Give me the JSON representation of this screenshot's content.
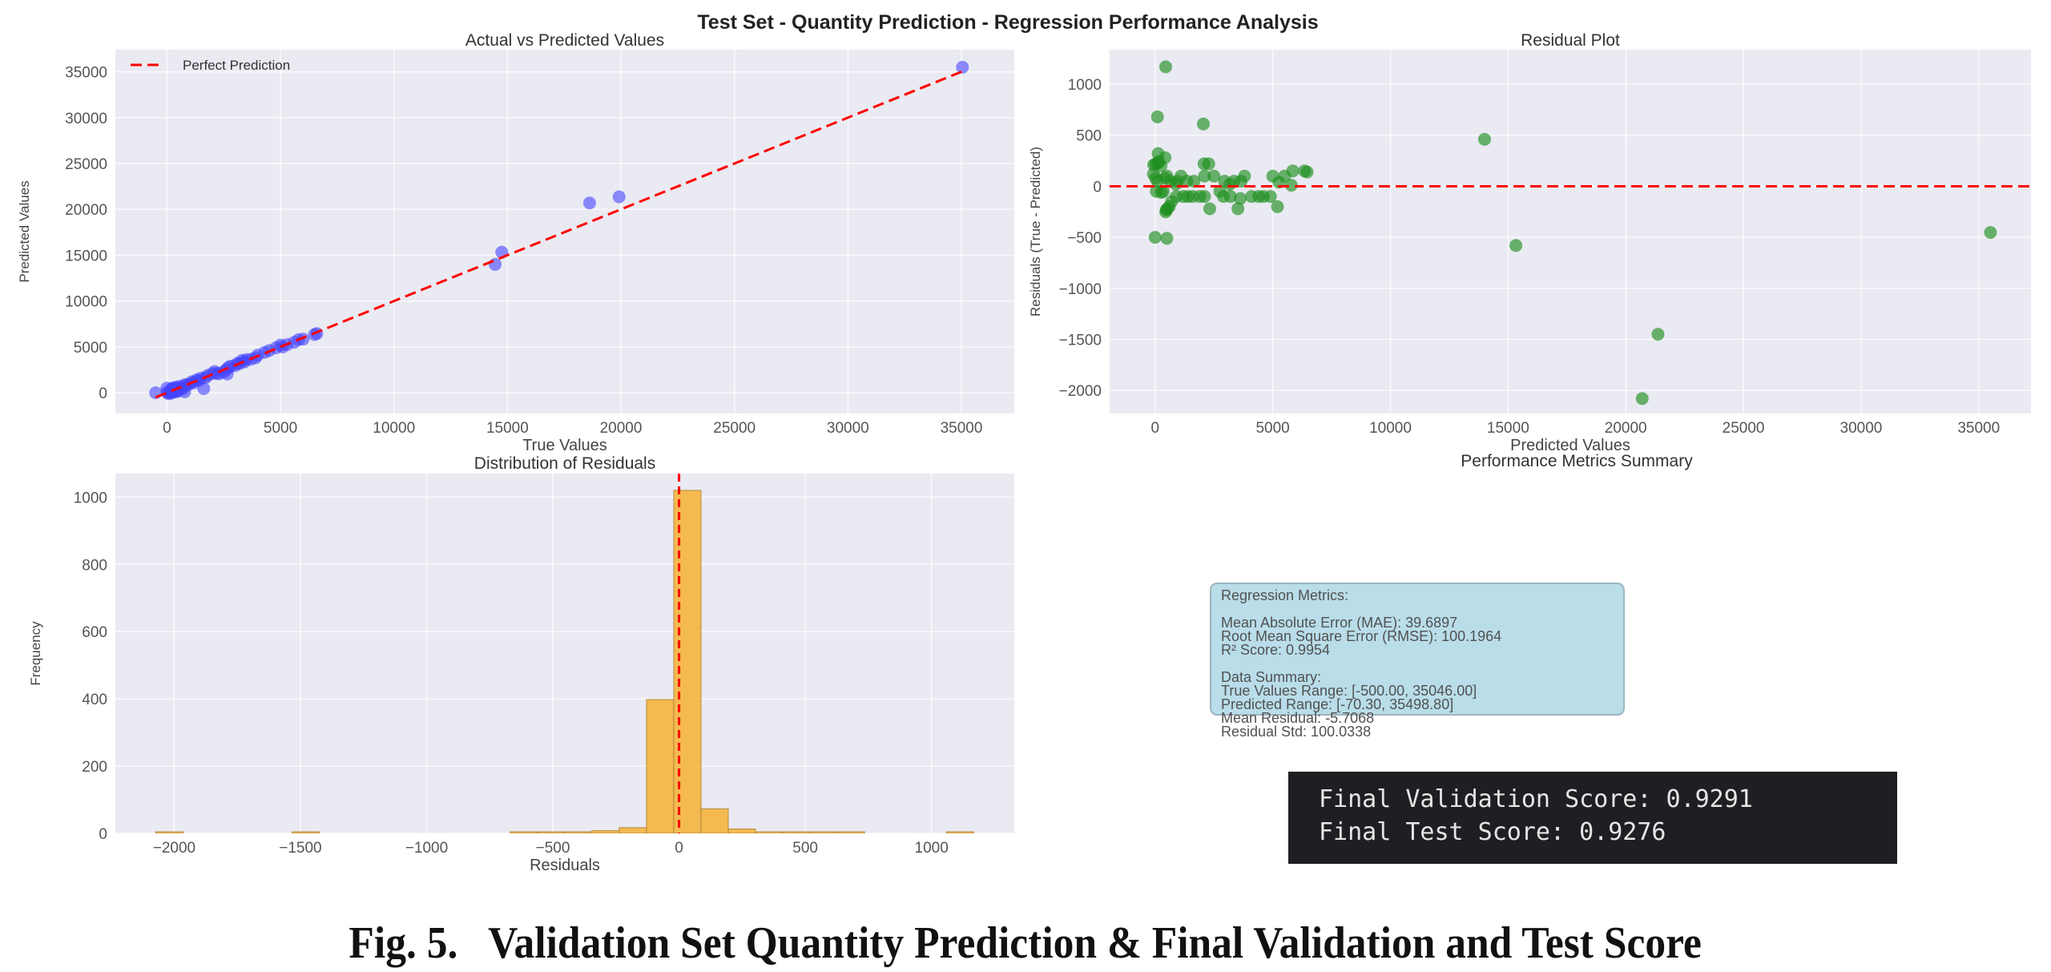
{
  "figure": {
    "suptitle": "Test Set - Quantity Prediction - Regression Performance Analysis",
    "caption": "Fig. 5.   Validation Set Quantity Prediction & Final Validation and Test Score",
    "colors": {
      "plot_bg": "#eaeaf2",
      "grid": "#ffffff",
      "scatter1": "#4444ff",
      "scatter2": "#1f8f1f",
      "hist": "#f6b53f",
      "refline": "#ff0000"
    }
  },
  "chart_data": [
    {
      "type": "scatter",
      "title": "Actual vs Predicted Values",
      "xlabel": "True Values",
      "ylabel": "Predicted Values",
      "xlim": [
        -2274,
        37330
      ],
      "ylim": [
        -2260,
        37410
      ],
      "xticks": [
        0,
        5000,
        10000,
        15000,
        20000,
        25000,
        30000,
        35000
      ],
      "yticks": [
        0,
        5000,
        10000,
        15000,
        20000,
        25000,
        30000,
        35000
      ],
      "grid": true,
      "legend": {
        "position": "top-left",
        "entries": [
          "Perfect Prediction"
        ]
      },
      "reference_line": {
        "from": [
          -500,
          -500
        ],
        "to": [
          35046,
          35046
        ],
        "style": "dashed"
      },
      "points": [
        [
          35046,
          35499
        ],
        [
          18620,
          20700
        ],
        [
          19920,
          21370
        ],
        [
          14460,
          14000
        ],
        [
          14750,
          15330
        ],
        [
          1620,
          450
        ],
        [
          -500,
          0
        ],
        [
          780,
          100
        ],
        [
          2660,
          2050
        ],
        [
          -10,
          500
        ],
        [
          450,
          130
        ],
        [
          0,
          50
        ],
        [
          50,
          -70
        ],
        [
          100,
          20
        ],
        [
          150,
          100
        ],
        [
          200,
          260
        ],
        [
          250,
          30
        ],
        [
          300,
          350
        ],
        [
          350,
          120
        ],
        [
          400,
          600
        ],
        [
          450,
          250
        ],
        [
          500,
          420
        ],
        [
          550,
          700
        ],
        [
          600,
          500
        ],
        [
          700,
          650
        ],
        [
          800,
          900
        ],
        [
          900,
          880
        ],
        [
          1000,
          950
        ],
        [
          1100,
          1200
        ],
        [
          1200,
          1100
        ],
        [
          1300,
          1400
        ],
        [
          1400,
          1350
        ],
        [
          1500,
          1600
        ],
        [
          1700,
          1650
        ],
        [
          1800,
          1900
        ],
        [
          2000,
          2100
        ],
        [
          2200,
          2100
        ],
        [
          2300,
          2080
        ],
        [
          2500,
          2280
        ],
        [
          2600,
          2500
        ],
        [
          2700,
          2750
        ],
        [
          2800,
          2900
        ],
        [
          3000,
          2950
        ],
        [
          3100,
          3200
        ],
        [
          3200,
          3180
        ],
        [
          3400,
          3350
        ],
        [
          3500,
          3620
        ],
        [
          3700,
          3650
        ],
        [
          3900,
          3800
        ],
        [
          4000,
          4100
        ],
        [
          4300,
          4400
        ],
        [
          4500,
          4600
        ],
        [
          4800,
          4900
        ],
        [
          5000,
          5200
        ],
        [
          5100,
          5000
        ],
        [
          5300,
          5260
        ],
        [
          5600,
          5500
        ],
        [
          5800,
          5790
        ],
        [
          6000,
          5850
        ],
        [
          6500,
          6350
        ],
        [
          6600,
          6460
        ],
        [
          3300,
          3520
        ],
        [
          2100,
          2320
        ],
        [
          300,
          520
        ],
        [
          200,
          450
        ],
        [
          700,
          420
        ],
        [
          400,
          160
        ],
        [
          250,
          480
        ],
        [
          150,
          -60
        ]
      ]
    },
    {
      "type": "scatter",
      "title": "Residual Plot",
      "xlabel": "Predicted Values",
      "ylabel": "Residuals (True - Predicted)",
      "xlim": [
        -1933,
        37220
      ],
      "ylim": [
        -2226,
        1338
      ],
      "xticks": [
        0,
        5000,
        10000,
        15000,
        20000,
        25000,
        30000,
        35000
      ],
      "yticks": [
        -2000,
        -1500,
        -1000,
        -500,
        0,
        500,
        1000
      ],
      "grid": true,
      "reference_line": {
        "y": 0,
        "style": "dashed"
      },
      "points_note": "residual = true - predicted, plotted against predicted; derived from the same points as chart 1"
    },
    {
      "type": "bar",
      "subtype": "histogram",
      "title": "Distribution of Residuals",
      "xlabel": "Residuals",
      "ylabel": "Frequency",
      "xlim": [
        -2233,
        1328
      ],
      "ylim": [
        0,
        1070
      ],
      "xticks": [
        -2000,
        -1500,
        -1000,
        -500,
        0,
        500,
        1000
      ],
      "yticks": [
        0,
        200,
        400,
        600,
        800,
        1000
      ],
      "grid": true,
      "bin_start": -2073,
      "bin_width": 108,
      "counts": [
        1,
        0,
        0,
        0,
        0,
        1,
        0,
        0,
        0,
        0,
        0,
        0,
        0,
        1,
        3,
        3,
        8,
        17,
        398,
        1020,
        73,
        13,
        4,
        2,
        2,
        2,
        0,
        0,
        0,
        1
      ],
      "reference_line": {
        "x": 0,
        "style": "dashed"
      }
    }
  ],
  "metrics_panel": {
    "title": "Performance Metrics Summary",
    "lines_a": [
      "Regression Metrics:"
    ],
    "lines_b": [
      "Mean Absolute Error (MAE): 39.6897",
      "Root Mean Square Error (RMSE): 100.1964",
      "R² Score: 0.9954"
    ],
    "lines_c": [
      "Data Summary:",
      "True Values Range: [-500.00, 35046.00]",
      "Predicted Range: [-70.30, 35498.80]",
      "Mean Residual: -5.7068",
      "Residual Std: 100.0338"
    ]
  },
  "terminal": {
    "lines": [
      "Final Validation Score: 0.9291",
      "Final Test Score: 0.9276"
    ]
  }
}
